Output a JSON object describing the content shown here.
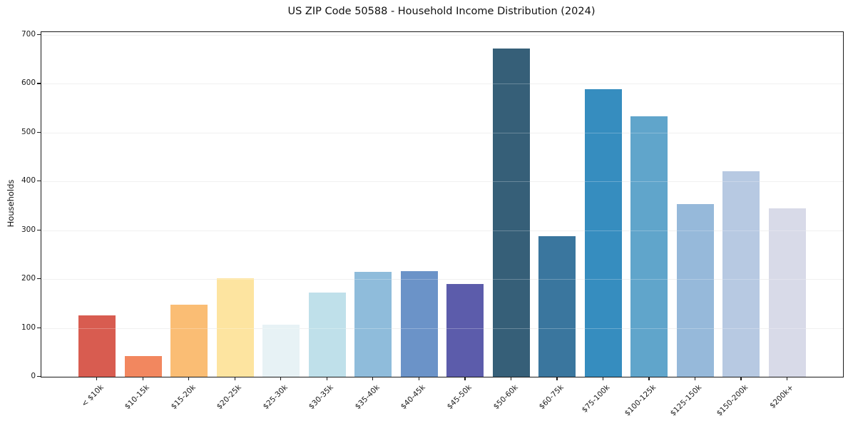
{
  "chart_data": {
    "type": "bar",
    "title": "US ZIP Code 50588 - Household Income Distribution (2024)",
    "xlabel": "",
    "ylabel": "Households",
    "categories": [
      "< $10k",
      "$10-15k",
      "$15-20k",
      "$20-25k",
      "$25-30k",
      "$30-35k",
      "$35-40k",
      "$40-45k",
      "$45-50k",
      "$50-60k",
      "$60-75k",
      "$75-100k",
      "$100-125k",
      "$125-150k",
      "$150-200k",
      "$200k+"
    ],
    "values": [
      126,
      42,
      148,
      201,
      107,
      172,
      215,
      216,
      190,
      672,
      288,
      589,
      533,
      354,
      421,
      345
    ],
    "bar_colors": [
      "#d85c50",
      "#f2875f",
      "#fabd74",
      "#fde4a0",
      "#e7f2f5",
      "#bfe0ea",
      "#8fbcdb",
      "#6b93c8",
      "#5c5cab",
      "#365f78",
      "#3a769e",
      "#368dbf",
      "#60a5cb",
      "#96b9da",
      "#b7c9e2",
      "#d8dae8"
    ],
    "ylim": [
      0,
      705.6
    ],
    "yticks": [
      0,
      100,
      200,
      300,
      400,
      500,
      600,
      700
    ],
    "grid": true,
    "legend_position": "none",
    "spine_color": "#1a1a1a",
    "grid_color": "#ebebeb"
  }
}
